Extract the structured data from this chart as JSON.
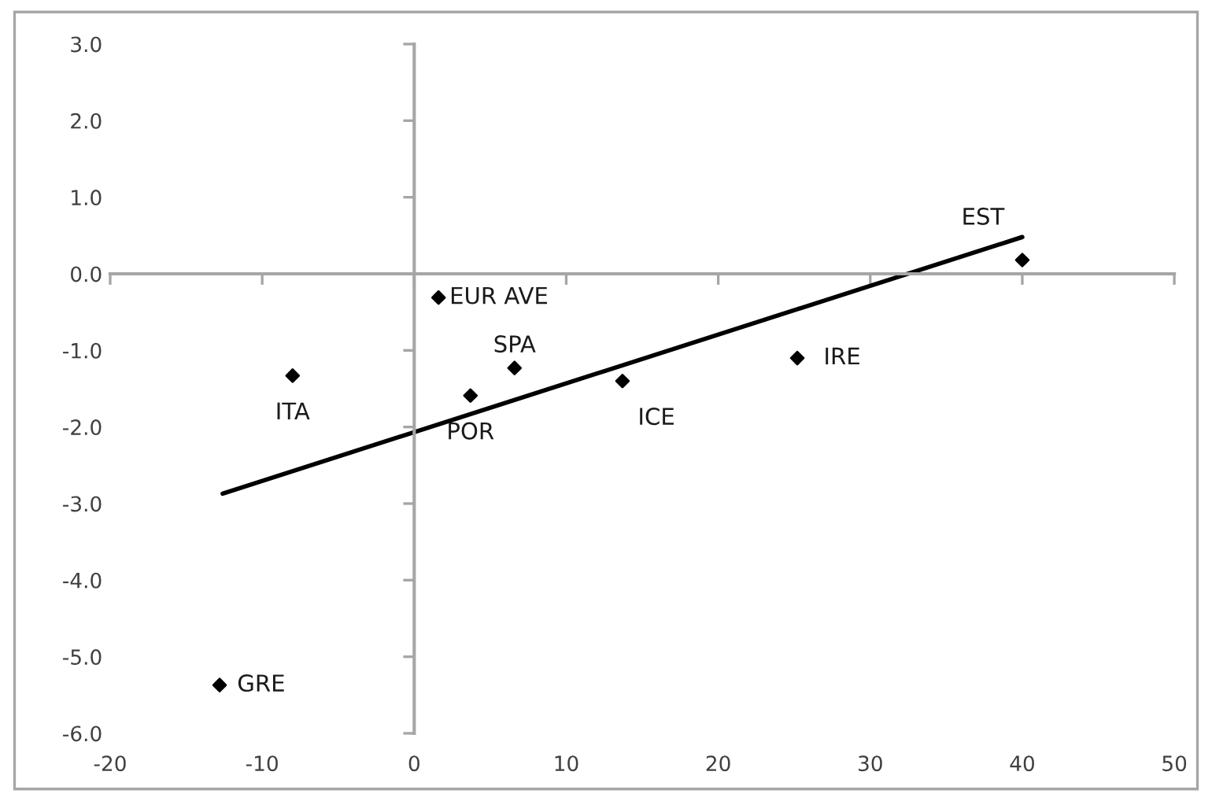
{
  "chart_data": {
    "type": "scatter",
    "xlim": [
      -20,
      50
    ],
    "xticks": [
      -20,
      -10,
      0,
      10,
      20,
      30,
      40,
      50
    ],
    "ylim": [
      -6,
      3
    ],
    "yticks": [
      {
        "value": -6,
        "label": "-6.0"
      },
      {
        "value": -5,
        "label": "-5.0"
      },
      {
        "value": -4,
        "label": "-4.0"
      },
      {
        "value": -3,
        "label": "-3.0"
      },
      {
        "value": -2,
        "label": "-2.0"
      },
      {
        "value": -1,
        "label": "-1.0"
      },
      {
        "value": 0,
        "label": "0.0"
      },
      {
        "value": 1,
        "label": "1.0"
      },
      {
        "value": 2,
        "label": "2.0"
      },
      {
        "value": 3,
        "label": "3.0"
      }
    ],
    "legend": false,
    "marker": "diamond",
    "series": [
      {
        "color": "#000000",
        "x": [
          -12.8,
          -8.0,
          1.6,
          3.7,
          6.6,
          13.7,
          25.2,
          40.0
        ],
        "values": [
          -5.37,
          -1.33,
          -0.31,
          -1.59,
          -1.23,
          -1.4,
          -1.1,
          0.18
        ]
      },
      {
        "type": "line",
        "marker": "none",
        "color": "#000000",
        "x": [
          -12.6,
          40.0
        ],
        "values": [
          -2.87,
          0.48
        ]
      }
    ],
    "annotations": [
      {
        "text": "GRE",
        "x": -12.8,
        "y": -5.37
      },
      {
        "text": "ITA",
        "x": -8.0,
        "y": -1.33
      },
      {
        "text": "EUR AVE",
        "x": 1.6,
        "y": -0.31
      },
      {
        "text": "POR",
        "x": 3.7,
        "y": -1.59
      },
      {
        "text": "SPA",
        "x": 6.6,
        "y": -1.23
      },
      {
        "text": "ICE",
        "x": 13.7,
        "y": -1.4
      },
      {
        "text": "IRE",
        "x": 25.2,
        "y": -1.1
      },
      {
        "text": "EST",
        "x": 40.0,
        "y": 0.18
      }
    ]
  }
}
